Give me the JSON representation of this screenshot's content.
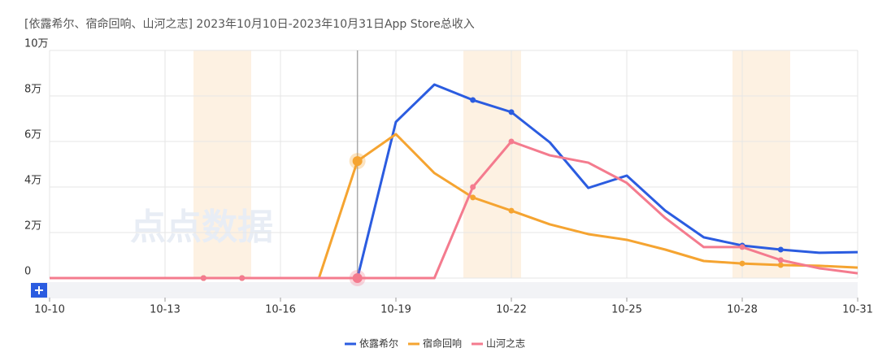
{
  "chart_data": {
    "type": "line",
    "title": "[依露希尔、宿命回响、山河之志]  2023年10月10日-2023年10月31日App Store总收入",
    "watermark": "点点数据",
    "categories": [
      "10-10",
      null,
      null,
      "10-13",
      null,
      null,
      "10-16",
      null,
      null,
      "10-19",
      null,
      null,
      "10-22",
      null,
      null,
      "10-25",
      null,
      null,
      "10-28",
      null,
      null,
      "10-31"
    ],
    "series": [
      {
        "name": "依露希尔",
        "color": "#2b5ce0",
        "values": [
          0,
          0,
          0,
          0,
          0,
          0,
          0,
          0,
          0,
          6.86,
          8.5,
          7.82,
          7.29,
          5.96,
          3.96,
          4.5,
          2.96,
          1.79,
          1.43,
          1.25,
          1.11,
          1.14
        ]
      },
      {
        "name": "宿命回响",
        "color": "#f5a431",
        "values": [
          0,
          0,
          0,
          0,
          0,
          0,
          0,
          0,
          5.14,
          6.32,
          4.61,
          3.54,
          2.96,
          2.36,
          1.93,
          1.68,
          1.25,
          0.75,
          0.64,
          0.57,
          0.54,
          0.46
        ]
      },
      {
        "name": "山河之志",
        "color": "#f47b8e",
        "values": [
          0,
          0,
          0,
          0,
          0,
          0,
          0,
          0,
          0,
          0,
          0,
          4.0,
          6.0,
          5.39,
          5.07,
          4.18,
          2.64,
          1.36,
          1.36,
          0.79,
          0.43,
          0.21
        ]
      }
    ],
    "ylim": [
      0,
      10
    ],
    "yticks": [
      0,
      {
        "value": 2,
        "label": "2万"
      },
      {
        "value": 4,
        "label": "4万"
      },
      {
        "value": 6,
        "label": "6万"
      },
      {
        "value": 8,
        "label": "8万"
      },
      {
        "value": 10,
        "label": "10万"
      }
    ],
    "grid": true,
    "legend": "bottom"
  }
}
